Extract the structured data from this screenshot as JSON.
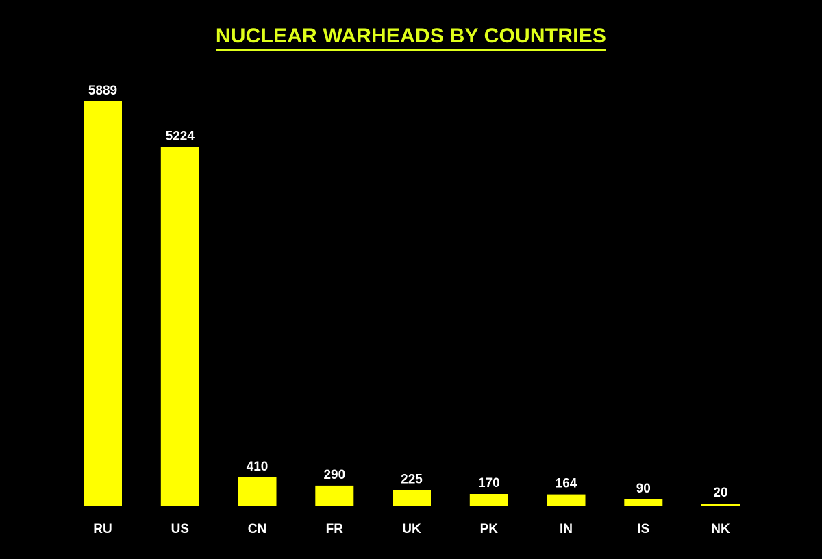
{
  "chart_data": {
    "type": "bar",
    "title": "NUCLEAR WARHEADS BY COUNTRIES",
    "categories": [
      "RU",
      "US",
      "CN",
      "FR",
      "UK",
      "PK",
      "IN",
      "IS",
      "NK"
    ],
    "values": [
      5889,
      5224,
      410,
      290,
      225,
      170,
      164,
      90,
      20
    ],
    "data_labels": [
      "5889",
      "5224",
      "410",
      "290",
      "225",
      "170",
      "164",
      "90",
      "20"
    ],
    "xlabel": "",
    "ylabel": "",
    "ylim": [
      0,
      5889
    ],
    "grid": false,
    "legend": "none",
    "colors": {
      "background": "#000000",
      "bar": "#ffff00",
      "title": "#e0ff1a",
      "text": "#ffffff"
    }
  }
}
